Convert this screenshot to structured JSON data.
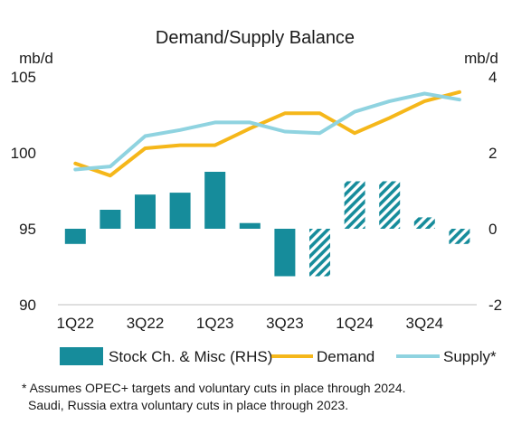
{
  "chart_data": {
    "type": "bar+line",
    "title": "Demand/Supply Balance",
    "left_unit": "mb/d",
    "right_unit": "mb/d",
    "categories": [
      "1Q22",
      "2Q22",
      "3Q22",
      "4Q22",
      "1Q23",
      "2Q23",
      "3Q23",
      "4Q23",
      "1Q24",
      "2Q24",
      "3Q24",
      "4Q24"
    ],
    "x_tick_labels": [
      "1Q22",
      "3Q22",
      "1Q23",
      "3Q23",
      "1Q24",
      "3Q24"
    ],
    "left_axis": {
      "ylim": [
        90,
        105
      ],
      "ticks": [
        "90",
        "95",
        "100",
        "105"
      ]
    },
    "right_axis": {
      "ylim": [
        -2,
        4
      ],
      "ticks": [
        "-2",
        "0",
        "2",
        "4"
      ]
    },
    "series": [
      {
        "name": "Stock Ch. & Misc (RHS)",
        "kind": "bar",
        "axis": "right",
        "color": "#168c9b",
        "values": [
          -0.4,
          0.5,
          0.9,
          0.95,
          1.5,
          0.15,
          -1.25,
          -1.25,
          1.25,
          1.25,
          0.3,
          -0.4
        ],
        "hatched_from_index": 7
      },
      {
        "name": "Demand",
        "kind": "line",
        "axis": "left",
        "color": "#f5b71a",
        "values": [
          99.3,
          98.5,
          100.3,
          100.5,
          100.5,
          101.6,
          102.6,
          102.6,
          101.3,
          102.3,
          103.4,
          104.0
        ]
      },
      {
        "name": "Supply*",
        "kind": "line",
        "axis": "left",
        "color": "#8fd3e0",
        "values": [
          98.9,
          99.1,
          101.1,
          101.5,
          102.0,
          102.0,
          101.4,
          101.3,
          102.7,
          103.4,
          103.9,
          103.5
        ]
      }
    ],
    "legend_position": "bottom",
    "grid": false
  },
  "footnote": {
    "line1": "* Assumes OPEC+ targets and voluntary cuts in place through 2024.",
    "line2": "Saudi, Russia extra voluntary cuts in place through 2023."
  }
}
